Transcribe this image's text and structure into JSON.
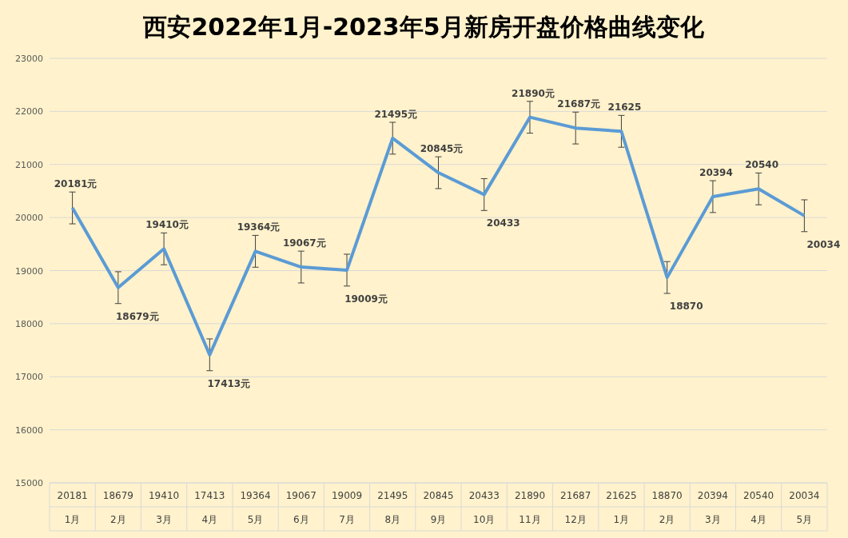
{
  "chart_data": {
    "type": "line",
    "title": "西安2022年1月-2023年5月新房开盘价格曲线变化",
    "categories": [
      "1月",
      "2月",
      "3月",
      "4月",
      "5月",
      "6月",
      "7月",
      "8月",
      "9月",
      "10月",
      "11月",
      "12月",
      "1月",
      "2月",
      "3月",
      "4月",
      "5月"
    ],
    "series": [
      {
        "color": "#5b9bd5",
        "values": [
          20181,
          18679,
          19410,
          17413,
          19364,
          19067,
          19009,
          21495,
          20845,
          20433,
          21890,
          21687,
          21625,
          18870,
          20394,
          20540,
          20034
        ],
        "errors": [
          300,
          300,
          300,
          300,
          300,
          300,
          300,
          300,
          300,
          300,
          300,
          300,
          300,
          300,
          300,
          300,
          300
        ]
      }
    ],
    "annotations": [
      "20181元",
      "18679元",
      "19410元",
      "17413元",
      "19364元",
      "19067元",
      "19009元",
      "21495元",
      "20845元",
      "20433",
      "21890元",
      "21687元",
      "21625",
      "18870",
      "20394",
      "20540",
      "20034"
    ],
    "ylim": [
      15000,
      23000
    ],
    "yticks": [
      15000,
      16000,
      17000,
      18000,
      19000,
      20000,
      21000,
      22000,
      23000
    ],
    "grid": "y",
    "data_labels": true,
    "marker": "none",
    "line_style": "solid"
  }
}
